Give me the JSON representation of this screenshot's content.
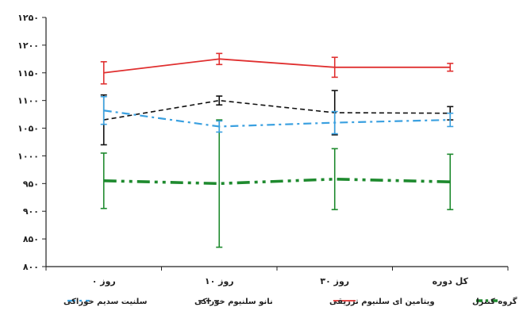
{
  "chart_data": {
    "type": "line",
    "categories": [
      "روز ۰",
      "روز ۱۰",
      "روز ۳۰",
      "کل دوره"
    ],
    "ylim": [
      800,
      1250
    ],
    "yticks": [
      "۸۰۰",
      "۸۵۰",
      "۹۰۰",
      "۹۵۰",
      "۱۰۰۰",
      "۱۰۵۰",
      "۱۱۰۰",
      "۱۱۵۰",
      "۱۲۰۰",
      "۱۲۵۰"
    ],
    "ytick_values": [
      800,
      850,
      900,
      950,
      1000,
      1050,
      1100,
      1150,
      1200,
      1250
    ],
    "grid": false,
    "legend_position": "bottom",
    "series": [
      {
        "name": "گروه کنترل",
        "color": "#1e8a2e",
        "dash": "dash-dot-dot",
        "values": [
          955,
          950,
          958,
          953
        ],
        "error": [
          50,
          115,
          55,
          50
        ]
      },
      {
        "name": "ویتامین ای سلنیوم تزریقی",
        "color": "#e03030",
        "dash": "solid",
        "values": [
          1150,
          1175,
          1160,
          1160
        ],
        "error": [
          20,
          10,
          18,
          7
        ]
      },
      {
        "name": "نانو سلنیوم خوراکی",
        "color": "#111111",
        "dash": "dash",
        "values": [
          1065,
          1100,
          1078,
          1077
        ],
        "error": [
          45,
          8,
          40,
          12
        ]
      },
      {
        "name": "سلنیت سدیم خوراکی",
        "color": "#3aa0e0",
        "dash": "dash-dot",
        "values": [
          1082,
          1053,
          1060,
          1065
        ],
        "error": [
          25,
          10,
          20,
          12
        ]
      }
    ]
  }
}
